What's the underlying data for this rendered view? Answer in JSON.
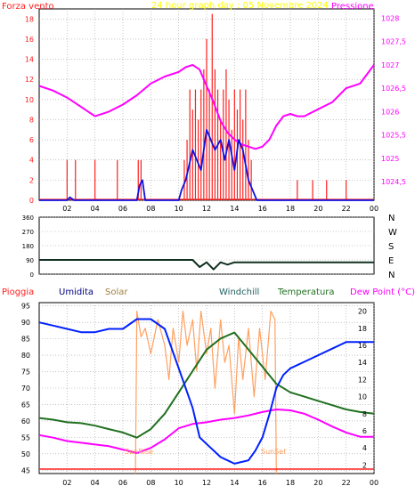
{
  "colors": {
    "wind": "#ff2020",
    "gust": "#ff2020",
    "wind_mean": "#1010e0",
    "pressure": "#ff00ff",
    "direction": "#103020",
    "humidity": "#0020ff",
    "solar": "#ffa060",
    "temperature": "#207020",
    "dewpoint": "#ff00ff",
    "rain": "#ff2020",
    "title": "#ffff00",
    "grid": "#a0a0a0",
    "frame": "#000000"
  },
  "chart_data": [
    {
      "type": "line",
      "title": "24 hour graph day : 05 Novembre 2024",
      "left_label": "Forza vento",
      "right_label": "Pressione",
      "x_ticks": [
        "02",
        "04",
        "06",
        "08",
        "10",
        "12",
        "14",
        "16",
        "18",
        "20",
        "22",
        "00"
      ],
      "x_range_hours": [
        0,
        24
      ],
      "y_left": {
        "ticks": [
          "0",
          "2",
          "4",
          "6",
          "8",
          "10",
          "12",
          "14",
          "16",
          "18"
        ],
        "range": [
          0,
          19
        ]
      },
      "y_right": {
        "ticks": [
          "1024,5",
          "1025",
          "1025,5",
          "1026",
          "1026,5",
          "1027",
          "1027,5",
          "1028"
        ],
        "range": [
          1024.1,
          1028.2
        ]
      },
      "series": [
        {
          "name": "Pressione",
          "axis": "right",
          "x": [
            0,
            1,
            2,
            3,
            4,
            5,
            6,
            7,
            8,
            9,
            10,
            10.5,
            11,
            11.5,
            12,
            12.5,
            13,
            13.5,
            14,
            14.5,
            15,
            15.5,
            16,
            16.5,
            17,
            17.5,
            18,
            18.5,
            19,
            20,
            21,
            22,
            23,
            24
          ],
          "y": [
            1026.55,
            1026.45,
            1026.3,
            1026.1,
            1025.9,
            1026.0,
            1026.15,
            1026.35,
            1026.6,
            1026.75,
            1026.85,
            1026.95,
            1027.0,
            1026.9,
            1026.55,
            1026.2,
            1025.8,
            1025.55,
            1025.4,
            1025.3,
            1025.25,
            1025.2,
            1025.25,
            1025.4,
            1025.7,
            1025.9,
            1025.95,
            1025.9,
            1025.9,
            1026.05,
            1026.2,
            1026.5,
            1026.6,
            1027.0
          ]
        },
        {
          "name": "Forza vento media",
          "axis": "left",
          "x": [
            0,
            2,
            2.2,
            2.5,
            4,
            7,
            7.2,
            7.4,
            7.6,
            10,
            10.2,
            10.5,
            11,
            11.3,
            11.6,
            12,
            12.3,
            12.6,
            13,
            13.3,
            13.6,
            14,
            14.3,
            14.6,
            15,
            15.3,
            15.6,
            16,
            24
          ],
          "y": [
            0,
            0,
            0.3,
            0,
            0,
            0,
            1.5,
            2,
            0,
            0,
            1,
            2,
            5,
            4,
            3,
            7,
            6,
            5,
            6,
            4,
            6,
            3,
            6,
            5,
            2,
            1,
            0,
            0,
            0
          ]
        }
      ],
      "gust_bars": [
        {
          "x": 2.0,
          "y": 4
        },
        {
          "x": 2.6,
          "y": 4
        },
        {
          "x": 4.0,
          "y": 4
        },
        {
          "x": 5.6,
          "y": 4
        },
        {
          "x": 7.1,
          "y": 4
        },
        {
          "x": 7.3,
          "y": 4
        },
        {
          "x": 10.4,
          "y": 4
        },
        {
          "x": 10.6,
          "y": 6
        },
        {
          "x": 10.8,
          "y": 11
        },
        {
          "x": 11.0,
          "y": 9
        },
        {
          "x": 11.2,
          "y": 11
        },
        {
          "x": 11.4,
          "y": 8
        },
        {
          "x": 11.6,
          "y": 11
        },
        {
          "x": 11.8,
          "y": 13
        },
        {
          "x": 12.0,
          "y": 16
        },
        {
          "x": 12.2,
          "y": 11
        },
        {
          "x": 12.4,
          "y": 18.5
        },
        {
          "x": 12.6,
          "y": 13
        },
        {
          "x": 12.8,
          "y": 11
        },
        {
          "x": 13.0,
          "y": 8
        },
        {
          "x": 13.2,
          "y": 11
        },
        {
          "x": 13.4,
          "y": 13
        },
        {
          "x": 13.6,
          "y": 10
        },
        {
          "x": 13.8,
          "y": 7
        },
        {
          "x": 14.0,
          "y": 11
        },
        {
          "x": 14.2,
          "y": 9
        },
        {
          "x": 14.4,
          "y": 11
        },
        {
          "x": 14.6,
          "y": 8
        },
        {
          "x": 14.8,
          "y": 11
        },
        {
          "x": 15.0,
          "y": 6
        },
        {
          "x": 15.2,
          "y": 4
        },
        {
          "x": 18.5,
          "y": 2
        },
        {
          "x": 19.6,
          "y": 2
        },
        {
          "x": 20.6,
          "y": 2
        },
        {
          "x": 22.0,
          "y": 2
        }
      ]
    },
    {
      "type": "line",
      "title": "",
      "y_left": {
        "ticks": [
          "0",
          "90",
          "180",
          "270",
          "360"
        ],
        "range": [
          0,
          360
        ]
      },
      "right_labels": [
        "N",
        "W",
        "S",
        "E",
        "N"
      ],
      "series": [
        {
          "name": "Direzione vento",
          "x": [
            0,
            9,
            10,
            11,
            11.5,
            12,
            12.5,
            13,
            13.5,
            14,
            15,
            16,
            24
          ],
          "y": [
            90,
            90,
            90,
            90,
            45,
            75,
            30,
            75,
            60,
            75,
            75,
            75,
            75
          ]
        }
      ]
    },
    {
      "type": "line",
      "title": "",
      "labels": [
        "Pioggia",
        "Umidita",
        "Solar",
        "Windchill",
        "Temperatura",
        "Dew Point (°C)"
      ],
      "x_ticks": [
        "02",
        "04",
        "06",
        "08",
        "10",
        "12",
        "14",
        "16",
        "18",
        "20",
        "22",
        "00"
      ],
      "y_left": {
        "ticks": [
          "45",
          "50",
          "55",
          "60",
          "65",
          "70",
          "75",
          "80",
          "85",
          "90",
          "95"
        ],
        "range": [
          44,
          96
        ]
      },
      "y_right": {
        "ticks": [
          "2",
          "4",
          "6",
          "8",
          "10",
          "12",
          "14",
          "16",
          "18",
          "20"
        ],
        "range": [
          1,
          21
        ]
      },
      "annotations": [
        "SunRise",
        "SunSet"
      ],
      "series": [
        {
          "name": "Umidita",
          "axis": "left",
          "x": [
            0,
            1,
            2,
            3,
            4,
            5,
            6,
            7,
            8,
            9,
            10,
            11,
            11.5,
            12,
            13,
            14,
            15,
            15.5,
            16,
            16.5,
            17,
            17.5,
            18,
            19,
            20,
            21,
            22,
            23,
            24
          ],
          "y": [
            90,
            89,
            88,
            87,
            87,
            88,
            88,
            91,
            91,
            88,
            76,
            64,
            55,
            53,
            49,
            47,
            48,
            51,
            55,
            62,
            70,
            74,
            76,
            78,
            80,
            82,
            84,
            84,
            84
          ]
        },
        {
          "name": "Temperatura",
          "axis": "right",
          "x": [
            0,
            1,
            2,
            3,
            4,
            5,
            6,
            7,
            8,
            9,
            10,
            11,
            12,
            13,
            14,
            15,
            16,
            17,
            18,
            19,
            20,
            21,
            22,
            23,
            24
          ],
          "y": [
            7.5,
            7.3,
            7.0,
            6.9,
            6.6,
            6.2,
            5.8,
            5.2,
            6.2,
            8.0,
            10.5,
            13.0,
            15.5,
            16.8,
            17.5,
            15.5,
            13.5,
            11.5,
            10.5,
            10.0,
            9.5,
            9.0,
            8.5,
            8.2,
            8.0
          ]
        },
        {
          "name": "Dew Point",
          "axis": "right",
          "x": [
            0,
            1,
            2,
            3,
            4,
            5,
            6,
            7,
            8,
            9,
            10,
            11,
            12,
            13,
            14,
            15,
            16,
            17,
            18,
            19,
            20,
            21,
            22,
            23,
            24
          ],
          "y": [
            5.5,
            5.2,
            4.8,
            4.6,
            4.4,
            4.2,
            3.8,
            3.4,
            4.0,
            5.0,
            6.3,
            6.8,
            7.0,
            7.3,
            7.5,
            7.8,
            8.2,
            8.5,
            8.4,
            8.0,
            7.3,
            6.5,
            5.8,
            5.3,
            5.3
          ]
        },
        {
          "name": "Solar",
          "axis": "right",
          "x": [
            6.9,
            7.0,
            7.3,
            7.6,
            8,
            8.5,
            9,
            9.3,
            9.6,
            10,
            10.3,
            10.6,
            11,
            11.3,
            11.6,
            12,
            12.3,
            12.6,
            13,
            13.3,
            13.6,
            14,
            14.3,
            14.6,
            15,
            15.4,
            15.8,
            16.2,
            16.6,
            16.9,
            17.0
          ],
          "y": [
            1,
            20,
            17,
            18,
            15,
            19,
            16,
            12,
            18,
            14,
            20,
            16,
            19,
            13,
            20,
            15,
            18,
            11,
            19,
            14,
            16,
            8,
            17,
            12,
            18,
            10,
            18,
            12,
            20,
            19,
            1
          ]
        }
      ],
      "rain": {
        "x": [
          0,
          24
        ],
        "y": [
          0,
          0
        ]
      }
    }
  ]
}
